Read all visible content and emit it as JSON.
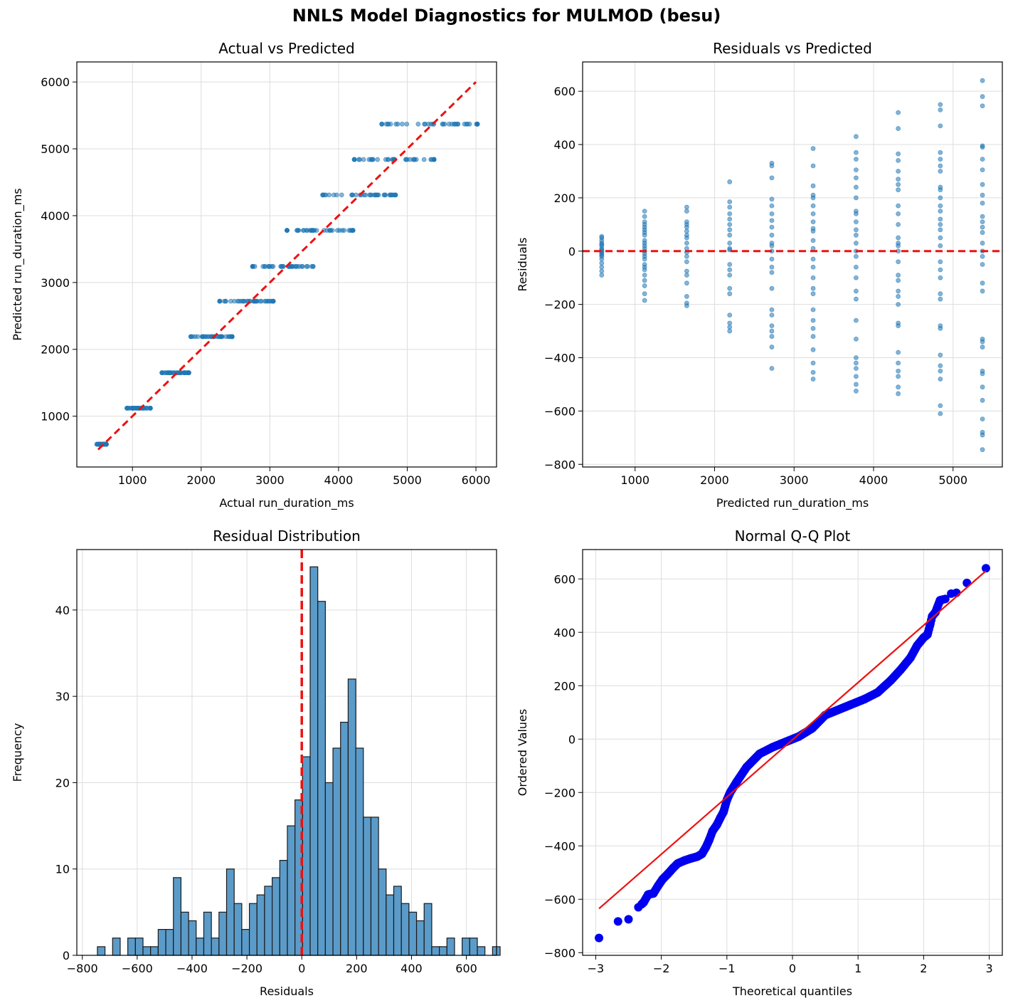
{
  "figure": {
    "title": "NNLS Model Diagnostics for MULMOD (besu)"
  },
  "colors": {
    "scatter": "#1f77b4",
    "hist": "#5b9bc9",
    "ref_line": "#ee1111",
    "qq_points": "#0000ee",
    "qq_line": "#ee1111"
  },
  "chart_data": [
    {
      "id": "actual_vs_predicted",
      "type": "scatter",
      "title": "Actual vs Predicted",
      "xlabel": "Actual run_duration_ms",
      "ylabel": "Predicted run_duration_ms",
      "xlim": [
        190,
        6300
      ],
      "ylim": [
        240,
        6300
      ],
      "xticks": [
        1000,
        2000,
        3000,
        4000,
        5000,
        6000
      ],
      "yticks": [
        1000,
        2000,
        3000,
        4000,
        5000,
        6000
      ],
      "grid": true,
      "reference_line": {
        "x": [
          500,
          6000
        ],
        "y": [
          500,
          6000
        ],
        "style": "dashed"
      },
      "groups": [
        {
          "predicted": 580,
          "actual_min": 480,
          "actual_max": 620,
          "n": 38
        },
        {
          "predicted": 1120,
          "actual_min": 920,
          "actual_max": 1260,
          "n": 38
        },
        {
          "predicted": 1650,
          "actual_min": 1430,
          "actual_max": 1820,
          "n": 38
        },
        {
          "predicted": 2190,
          "actual_min": 1850,
          "actual_max": 2450,
          "n": 38
        },
        {
          "predicted": 2720,
          "actual_min": 2270,
          "actual_max": 3050,
          "n": 38
        },
        {
          "predicted": 3240,
          "actual_min": 2750,
          "actual_max": 3630,
          "n": 38
        },
        {
          "predicted": 3780,
          "actual_min": 3250,
          "actual_max": 4210,
          "n": 38
        },
        {
          "predicted": 4310,
          "actual_min": 3770,
          "actual_max": 4830,
          "n": 38
        },
        {
          "predicted": 4840,
          "actual_min": 4230,
          "actual_max": 5390,
          "n": 38
        },
        {
          "predicted": 5370,
          "actual_min": 4630,
          "actual_max": 6020,
          "n": 38
        }
      ]
    },
    {
      "id": "residuals_vs_predicted",
      "type": "scatter",
      "title": "Residuals vs Predicted",
      "xlabel": "Predicted run_duration_ms",
      "ylabel": "Residuals",
      "xlim": [
        340,
        5620
      ],
      "ylim": [
        -810,
        710
      ],
      "xticks": [
        1000,
        2000,
        3000,
        4000,
        5000
      ],
      "yticks": [
        -800,
        -600,
        -400,
        -200,
        0,
        200,
        400,
        600
      ],
      "grid": true,
      "reference_line": {
        "y": 0,
        "style": "dashed"
      },
      "groups": [
        {
          "x": 580,
          "residuals": [
            55,
            40,
            30,
            20,
            10,
            5,
            0,
            -5,
            -10,
            -20,
            -30,
            -45,
            -60,
            -75,
            -90,
            50,
            25,
            -15
          ]
        },
        {
          "x": 1120,
          "residuals": [
            150,
            130,
            110,
            90,
            80,
            70,
            60,
            40,
            30,
            20,
            10,
            0,
            -10,
            -20,
            -30,
            -50,
            -70,
            -90,
            -110,
            -130,
            -160,
            -185,
            100,
            -60
          ]
        },
        {
          "x": 1650,
          "residuals": [
            165,
            150,
            110,
            100,
            90,
            75,
            60,
            30,
            10,
            -5,
            -20,
            -40,
            -75,
            -90,
            -120,
            -170,
            -195,
            -205,
            50
          ]
        },
        {
          "x": 2190,
          "residuals": [
            260,
            185,
            165,
            140,
            120,
            100,
            80,
            60,
            30,
            5,
            -50,
            -70,
            -90,
            -140,
            -160,
            -240,
            -270,
            -300,
            -285,
            10
          ]
        },
        {
          "x": 2720,
          "residuals": [
            330,
            320,
            275,
            195,
            170,
            140,
            115,
            90,
            60,
            30,
            0,
            -30,
            -60,
            -80,
            -140,
            -220,
            -240,
            -280,
            -300,
            -320,
            -360,
            -440,
            20
          ]
        },
        {
          "x": 3240,
          "residuals": [
            385,
            320,
            245,
            210,
            200,
            170,
            140,
            110,
            75,
            40,
            10,
            -30,
            -60,
            -100,
            -140,
            -160,
            -220,
            -260,
            -290,
            -320,
            -370,
            -420,
            -455,
            -480,
            85
          ]
        },
        {
          "x": 3780,
          "residuals": [
            430,
            370,
            345,
            305,
            275,
            240,
            200,
            150,
            140,
            110,
            80,
            60,
            30,
            -20,
            -60,
            -100,
            -150,
            -180,
            -260,
            -330,
            -400,
            -420,
            -440,
            -470,
            -500,
            -525,
            0
          ]
        },
        {
          "x": 4310,
          "residuals": [
            520,
            460,
            365,
            340,
            300,
            270,
            250,
            230,
            170,
            140,
            100,
            50,
            20,
            0,
            -40,
            -90,
            -110,
            -150,
            -170,
            -200,
            -270,
            -280,
            -380,
            -420,
            -450,
            -470,
            -510,
            -535,
            30
          ]
        },
        {
          "x": 4840,
          "residuals": [
            550,
            530,
            470,
            370,
            345,
            320,
            300,
            240,
            230,
            200,
            170,
            150,
            120,
            100,
            80,
            50,
            20,
            -40,
            -70,
            -100,
            -160,
            -180,
            -280,
            -290,
            -390,
            -430,
            -450,
            -480,
            -580,
            -610
          ]
        },
        {
          "x": 5370,
          "residuals": [
            640,
            580,
            545,
            395,
            390,
            345,
            305,
            250,
            210,
            180,
            130,
            110,
            90,
            70,
            30,
            0,
            -20,
            -50,
            -120,
            -150,
            -330,
            -340,
            -360,
            -450,
            -460,
            -510,
            -560,
            -630,
            -680,
            -690,
            -745
          ]
        }
      ]
    },
    {
      "id": "residual_distribution",
      "type": "bar",
      "title": "Residual Distribution",
      "xlabel": "Residuals",
      "ylabel": "Frequency",
      "xlim": [
        -820,
        710
      ],
      "ylim": [
        0,
        47
      ],
      "xticks": [
        -800,
        -600,
        -400,
        -200,
        0,
        200,
        400,
        600
      ],
      "yticks": [
        0,
        10,
        20,
        30,
        40
      ],
      "grid": true,
      "reference_line": {
        "x": 0,
        "style": "dashed"
      },
      "bin_start": -745,
      "bin_width": 27.7,
      "counts": [
        1,
        0,
        2,
        0,
        2,
        2,
        1,
        1,
        3,
        3,
        9,
        5,
        4,
        2,
        5,
        2,
        5,
        10,
        6,
        3,
        6,
        7,
        8,
        9,
        11,
        15,
        18,
        23,
        45,
        41,
        20,
        24,
        27,
        32,
        24,
        16,
        16,
        10,
        7,
        8,
        6,
        5,
        4,
        6,
        1,
        1,
        2,
        0,
        2,
        2,
        1,
        0,
        1
      ]
    },
    {
      "id": "normal_qq",
      "type": "scatter",
      "title": "Normal Q-Q Plot",
      "xlabel": "Theoretical quantiles",
      "ylabel": "Ordered Values",
      "xlim": [
        -3.2,
        3.2
      ],
      "ylim": [
        -810,
        710
      ],
      "xticks": [
        -3,
        -2,
        -1,
        0,
        1,
        2,
        3
      ],
      "yticks": [
        -800,
        -600,
        -400,
        -200,
        0,
        200,
        400,
        600
      ],
      "grid": true,
      "fit_line": {
        "x": [
          -2.95,
          2.95
        ],
        "y": [
          -635,
          630
        ]
      },
      "curve": [
        [
          -2.95,
          -745
        ],
        [
          -2.66,
          -683
        ],
        [
          -2.5,
          -675
        ],
        [
          -2.35,
          -630
        ],
        [
          -2.27,
          -612
        ],
        [
          -2.2,
          -582
        ],
        [
          -2.12,
          -578
        ],
        [
          -2.05,
          -550
        ],
        [
          -1.98,
          -525
        ],
        [
          -1.9,
          -505
        ],
        [
          -1.82,
          -483
        ],
        [
          -1.75,
          -466
        ],
        [
          -1.65,
          -455
        ],
        [
          -1.55,
          -447
        ],
        [
          -1.45,
          -440
        ],
        [
          -1.38,
          -430
        ],
        [
          -1.32,
          -405
        ],
        [
          -1.27,
          -378
        ],
        [
          -1.22,
          -345
        ],
        [
          -1.15,
          -320
        ],
        [
          -1.1,
          -295
        ],
        [
          -1.05,
          -272
        ],
        [
          -1.0,
          -228
        ],
        [
          -0.95,
          -200
        ],
        [
          -0.85,
          -160
        ],
        [
          -0.7,
          -105
        ],
        [
          -0.5,
          -55
        ],
        [
          -0.3,
          -30
        ],
        [
          -0.1,
          -10
        ],
        [
          0.1,
          10
        ],
        [
          0.3,
          40
        ],
        [
          0.5,
          90
        ],
        [
          0.8,
          120
        ],
        [
          1.1,
          150
        ],
        [
          1.3,
          175
        ],
        [
          1.5,
          220
        ],
        [
          1.65,
          260
        ],
        [
          1.8,
          305
        ],
        [
          1.9,
          350
        ],
        [
          2.0,
          380
        ],
        [
          2.06,
          392
        ],
        [
          2.1,
          430
        ],
        [
          2.13,
          460
        ],
        [
          2.18,
          475
        ],
        [
          2.25,
          520
        ],
        [
          2.33,
          525
        ],
        [
          2.42,
          545
        ],
        [
          2.5,
          548
        ],
        [
          2.66,
          585
        ],
        [
          2.95,
          640
        ]
      ]
    }
  ]
}
